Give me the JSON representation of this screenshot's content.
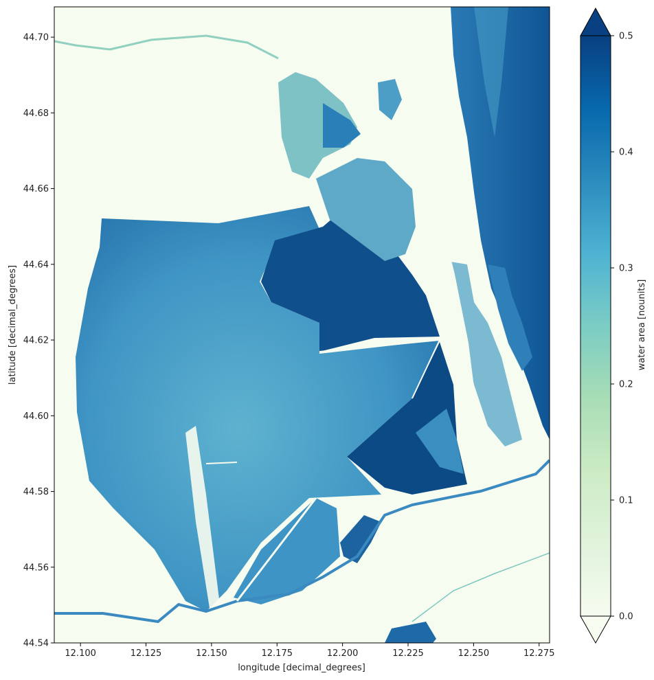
{
  "map": {
    "x_axis": {
      "label": "longitude [decimal_degrees]",
      "range": [
        12.09,
        12.279
      ],
      "ticks": [
        {
          "value": 12.1,
          "label": "12.100"
        },
        {
          "value": 12.125,
          "label": "12.125"
        },
        {
          "value": 12.15,
          "label": "12.150"
        },
        {
          "value": 12.175,
          "label": "12.175"
        },
        {
          "value": 12.2,
          "label": "12.200"
        },
        {
          "value": 12.225,
          "label": "12.225"
        },
        {
          "value": 12.25,
          "label": "12.250"
        },
        {
          "value": 12.275,
          "label": "12.275"
        }
      ]
    },
    "y_axis": {
      "label": "latitude [decimal_degrees]",
      "range": [
        44.54,
        44.708
      ],
      "ticks": [
        {
          "value": 44.54,
          "label": "44.54"
        },
        {
          "value": 44.56,
          "label": "44.56"
        },
        {
          "value": 44.58,
          "label": "44.58"
        },
        {
          "value": 44.6,
          "label": "44.60"
        },
        {
          "value": 44.62,
          "label": "44.62"
        },
        {
          "value": 44.64,
          "label": "44.64"
        },
        {
          "value": 44.66,
          "label": "44.66"
        },
        {
          "value": 44.68,
          "label": "44.68"
        },
        {
          "value": 44.7,
          "label": "44.70"
        }
      ]
    },
    "colorbar": {
      "label": "water area [nounits]",
      "range": [
        0.0,
        0.5
      ],
      "extend": "both",
      "colormap": "GnBu",
      "stops": [
        "#f7fcf0",
        "#e0f3db",
        "#ccebc5",
        "#a8ddb5",
        "#7bccc4",
        "#4eb3d3",
        "#2b8cbe",
        "#0868ac",
        "#084081"
      ],
      "ticks": [
        {
          "value": 0.0,
          "label": "0.0"
        },
        {
          "value": 0.1,
          "label": "0.1"
        },
        {
          "value": 0.2,
          "label": "0.2"
        },
        {
          "value": 0.3,
          "label": "0.3"
        },
        {
          "value": 0.4,
          "label": "0.4"
        },
        {
          "value": 0.5,
          "label": "0.5"
        }
      ]
    },
    "colors": {
      "land": "#f7fcf0",
      "lagoon_main": "#4a9cc8",
      "lagoon_dark": "#0c4a86",
      "sea": "#1e6aa8",
      "channel_light": "#9fd6c0"
    }
  }
}
